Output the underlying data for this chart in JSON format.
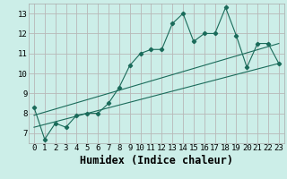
{
  "xlabel": "Humidex (Indice chaleur)",
  "bg_color": "#cceee8",
  "line_color": "#1a6b5a",
  "xlim": [
    -0.5,
    23.5
  ],
  "ylim": [
    6.5,
    13.5
  ],
  "xticks": [
    0,
    1,
    2,
    3,
    4,
    5,
    6,
    7,
    8,
    9,
    10,
    11,
    12,
    13,
    14,
    15,
    16,
    17,
    18,
    19,
    20,
    21,
    22,
    23
  ],
  "yticks": [
    7,
    8,
    9,
    10,
    11,
    12,
    13
  ],
  "main_x": [
    0,
    1,
    2,
    3,
    4,
    5,
    6,
    7,
    8,
    9,
    10,
    11,
    12,
    13,
    14,
    15,
    16,
    17,
    18,
    19,
    20,
    21,
    22,
    23
  ],
  "main_y": [
    8.3,
    6.7,
    7.5,
    7.3,
    7.9,
    8.0,
    8.0,
    8.5,
    9.3,
    10.4,
    11.0,
    11.2,
    11.2,
    12.5,
    13.0,
    11.6,
    12.0,
    12.0,
    13.3,
    11.9,
    10.3,
    11.5,
    11.5,
    10.5
  ],
  "upper_line_x": [
    0,
    23
  ],
  "upper_line_y": [
    7.9,
    11.5
  ],
  "lower_line_x": [
    0,
    23
  ],
  "lower_line_y": [
    7.3,
    10.5
  ],
  "grid_color": "#b8b8b8",
  "tick_fontsize": 6.5,
  "xlabel_fontsize": 8.5
}
